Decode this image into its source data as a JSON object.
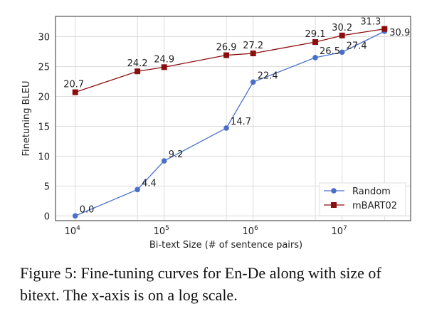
{
  "chart_data": {
    "type": "line",
    "xlabel": "Bi-text Size (# of sentence pairs)",
    "ylabel": "Finetuning BLEU",
    "xscale": "log",
    "xlim": [
      6000,
      59000000
    ],
    "ylim": [
      -0.8,
      33.4
    ],
    "xticks": [
      10000,
      100000,
      1000000,
      10000000
    ],
    "xtick_labels": [
      {
        "base": "10",
        "exp": "4"
      },
      {
        "base": "10",
        "exp": "5"
      },
      {
        "base": "10",
        "exp": "6"
      },
      {
        "base": "10",
        "exp": "7"
      }
    ],
    "yticks": [
      0,
      5,
      10,
      15,
      20,
      25,
      30
    ],
    "grid": true,
    "legend_placement": "lower-right",
    "x": [
      10000,
      50000,
      100000,
      500000,
      1000000,
      5000000,
      10000000,
      30000000
    ],
    "series": [
      {
        "name": "Random",
        "color": "#4a6fc9",
        "marker": "circle",
        "values": [
          0.0,
          4.4,
          9.2,
          14.7,
          22.4,
          26.5,
          27.4,
          30.9
        ],
        "labels": [
          "0.0",
          "4.4",
          "9.2",
          "14.7",
          "22.4",
          "26.5",
          "27.4",
          "30.9"
        ]
      },
      {
        "name": "mBART02",
        "color": "#8b0e0e",
        "marker": "square",
        "values": [
          20.7,
          24.2,
          24.9,
          26.9,
          27.2,
          29.1,
          30.2,
          31.3
        ],
        "labels": [
          "20.7",
          "24.2",
          "24.9",
          "26.9",
          "27.2",
          "29.1",
          "30.2",
          "31.3"
        ]
      }
    ]
  },
  "caption": "Figure 5: Fine-tuning curves for En-De along with size of bitext. The x-axis is on a log scale."
}
